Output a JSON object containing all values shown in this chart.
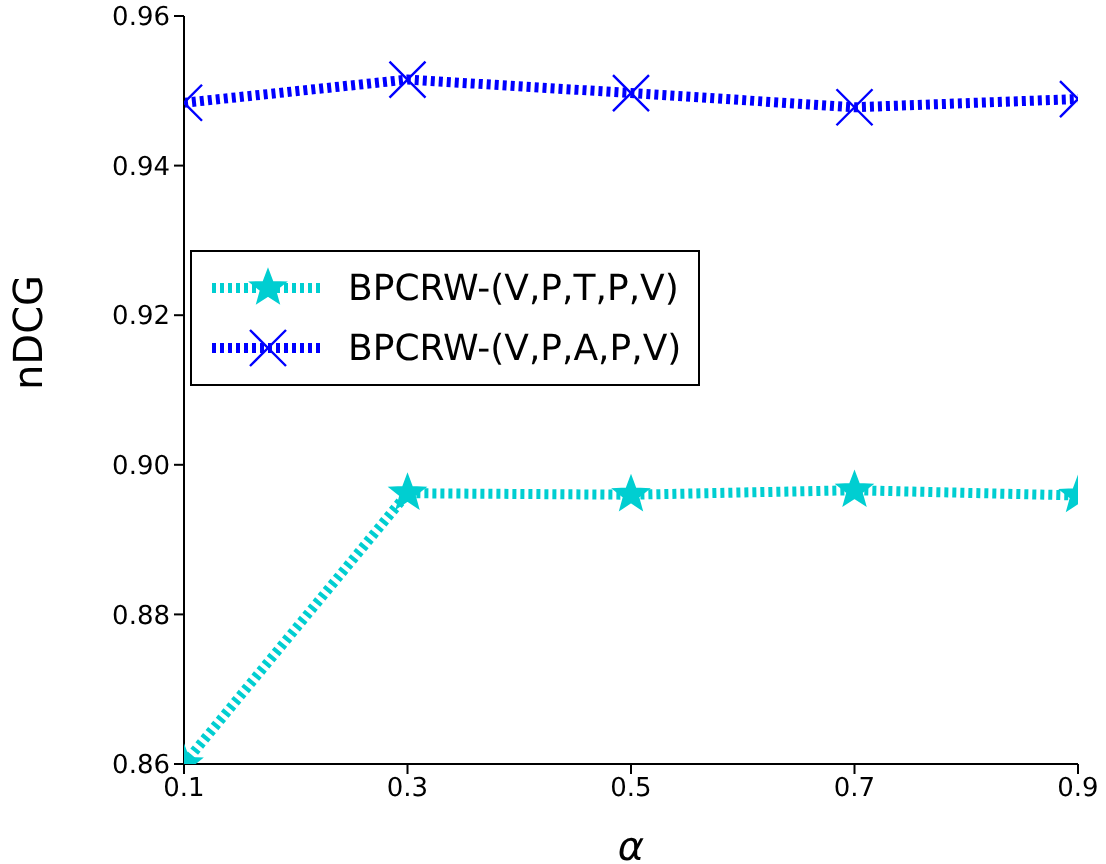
{
  "chart_data": {
    "type": "line",
    "xlabel": "α",
    "ylabel": "nDCG",
    "x": [
      0.1,
      0.3,
      0.5,
      0.7,
      0.9
    ],
    "series": [
      {
        "name": "BPCRW-(V,P,T,P,V)",
        "color": "#00ced1",
        "marker": "star",
        "values": [
          0.86,
          0.8962,
          0.896,
          0.8966,
          0.8959
        ]
      },
      {
        "name": "BPCRW-(V,P,A,P,V)",
        "color": "#0000ff",
        "marker": "cross",
        "values": [
          0.9484,
          0.9515,
          0.9497,
          0.9478,
          0.9489
        ]
      }
    ],
    "xlim": [
      0.1,
      0.9
    ],
    "xticks": [
      0.1,
      0.3,
      0.5,
      0.7,
      0.9
    ],
    "ylim": [
      0.86,
      0.96
    ],
    "yticks": [
      0.86,
      0.88,
      {
        "value": 0.9,
        "label": "0.90"
      },
      0.92,
      0.94,
      0.96
    ],
    "grid": false,
    "legend": "left",
    "line_style": "dotted"
  }
}
